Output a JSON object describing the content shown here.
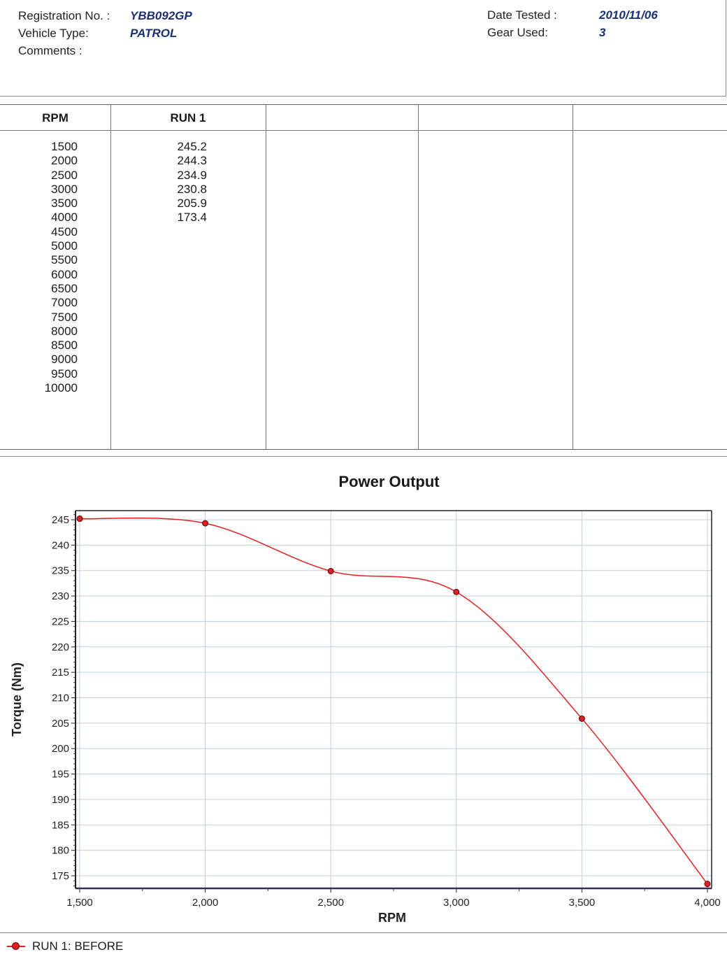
{
  "header": {
    "reg_label": "Registration No. :",
    "reg_value": "YBB092GP",
    "vehicle_label": "Vehicle Type:",
    "vehicle_value": "PATROL",
    "comments_label": "Comments :",
    "date_label": "Date Tested :",
    "date_value": "2010/11/06",
    "gear_label": "Gear Used:",
    "gear_value": "3"
  },
  "table": {
    "col_rpm": "RPM",
    "col_run1": "RUN 1",
    "rpm": [
      "1500",
      "2000",
      "2500",
      "3000",
      "3500",
      "4000",
      "4500",
      "5000",
      "5500",
      "6000",
      "6500",
      "7000",
      "7500",
      "8000",
      "8500",
      "9000",
      "9500",
      "10000"
    ],
    "run1": [
      "245.2",
      "244.3",
      "234.9",
      "230.8",
      "205.9",
      "173.4"
    ]
  },
  "chart_data": {
    "type": "line",
    "title": "Power Output",
    "xlabel": "RPM",
    "ylabel": "Torque (Nm)",
    "xlim": [
      1500,
      4000
    ],
    "ylim": [
      172.5,
      246.5
    ],
    "xticks": [
      1500,
      2000,
      2500,
      3000,
      3500,
      4000
    ],
    "xticklabels": [
      "1,500",
      "2,000",
      "2,500",
      "3,000",
      "3,500",
      "4,000"
    ],
    "yticks": [
      175,
      180,
      185,
      190,
      195,
      200,
      205,
      210,
      215,
      220,
      225,
      230,
      235,
      240,
      245
    ],
    "grid": true,
    "legend_position": "bottom-left",
    "series": [
      {
        "name": "RUN 1: BEFORE",
        "color": "#e02020",
        "x": [
          1500,
          2000,
          2500,
          3000,
          3500,
          4000
        ],
        "y": [
          245.2,
          244.3,
          234.9,
          230.8,
          205.9,
          173.4
        ]
      }
    ]
  }
}
